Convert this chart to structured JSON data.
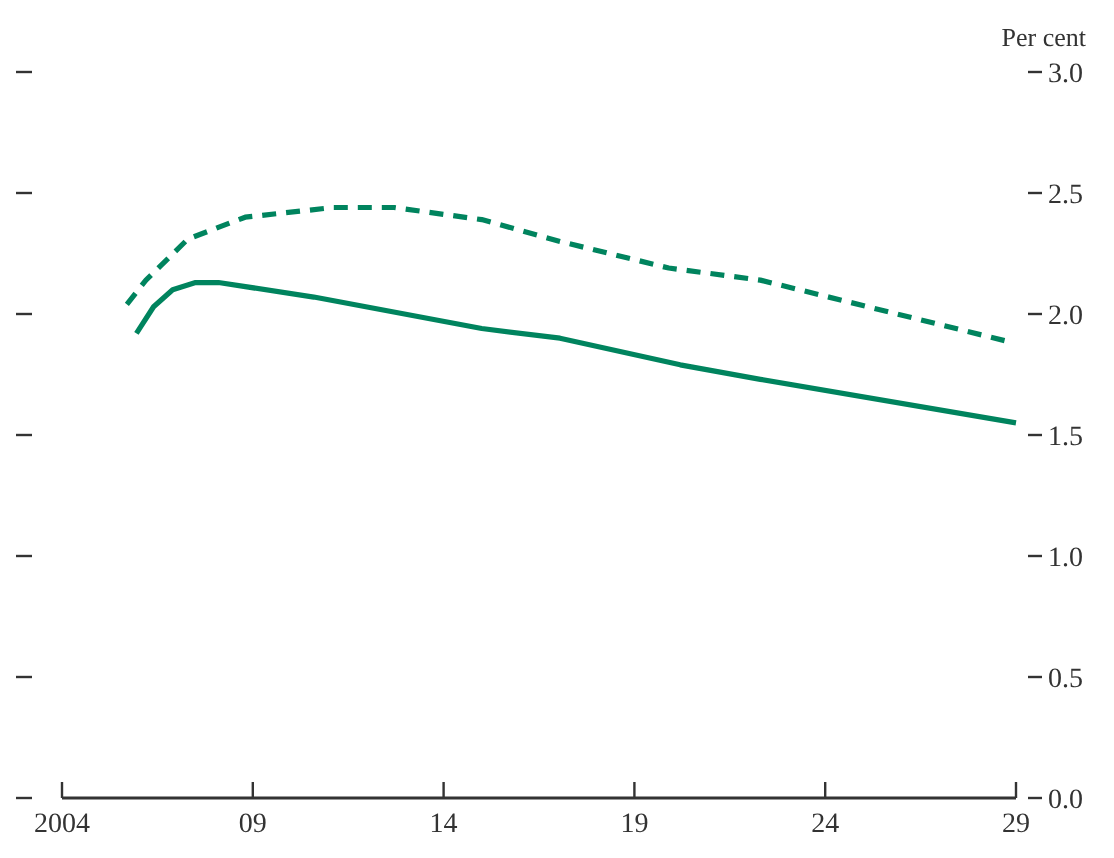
{
  "chart_data": {
    "type": "line",
    "ylabel": "Per cent",
    "xlim": [
      2004,
      2029
    ],
    "xticks": [
      {
        "value": 2004,
        "label": "2004"
      },
      {
        "value": 2009,
        "label": "09"
      },
      {
        "value": 2014,
        "label": "14"
      },
      {
        "value": 2019,
        "label": "19"
      },
      {
        "value": 2024,
        "label": "24"
      },
      {
        "value": 2029,
        "label": "29"
      }
    ],
    "ylim": [
      0,
      3
    ],
    "yticks": [
      {
        "value": 0,
        "label": "0.0"
      },
      {
        "value": 0.5,
        "label": "0.5"
      },
      {
        "value": 1,
        "label": "1.0"
      },
      {
        "value": 1.5,
        "label": "1.5"
      },
      {
        "value": 2,
        "label": "2.0"
      },
      {
        "value": 2.5,
        "label": "2.5"
      },
      {
        "value": 3,
        "label": "3.0"
      }
    ],
    "grid": false,
    "marker": "none",
    "series": [
      {
        "color": "#00845e",
        "line_style": "solid",
        "x": [
          2005.95,
          2006.4,
          2006.9,
          2007.5,
          2008.1,
          2010.6,
          2015.0,
          2017.05,
          2020.2,
          2022.3,
          2029
        ],
        "values": [
          1.92,
          2.03,
          2.1,
          2.13,
          2.13,
          2.07,
          1.94,
          1.9,
          1.79,
          1.73,
          1.55
        ]
      },
      {
        "color": "#00845e",
        "line_style": "dashed",
        "x": [
          2005.7,
          2006.2,
          2007.3,
          2008.8,
          2011.1,
          2012.7,
          2015.0,
          2017.05,
          2019.9,
          2022.3,
          2028.7
        ],
        "values": [
          2.04,
          2.14,
          2.31,
          2.4,
          2.44,
          2.44,
          2.39,
          2.3,
          2.19,
          2.14,
          1.89
        ]
      }
    ]
  }
}
